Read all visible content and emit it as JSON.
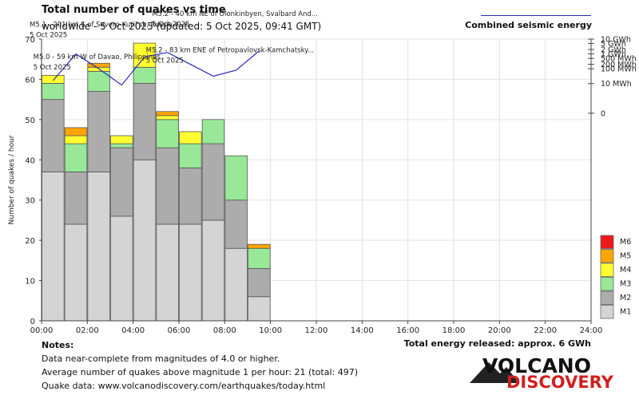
{
  "header": {
    "title": "Total number of quakes vs time",
    "subtitle": "worldwide -  5 Oct 2025 (updated: 5 Oct 2025, 09:41 GMT)",
    "energy_legend": "Combined seismic energy"
  },
  "colors": {
    "M1": "#d4d4d4",
    "M2": "#acacac",
    "M3": "#98e898",
    "M4": "#ffff30",
    "M5": "#ffa500",
    "M6": "#ee1a1a",
    "energy_line": "#2a2ab8"
  },
  "chart_data": {
    "type": "bar",
    "stacked": true,
    "title": "Total number of quakes vs time",
    "xlabel": "",
    "ylabel": "Number of quakes / hour",
    "ylim": [
      0,
      70
    ],
    "yticks": [
      0,
      10,
      20,
      30,
      40,
      50,
      60,
      70
    ],
    "xlim": [
      0,
      24
    ],
    "xtick_labels": [
      "00:00",
      "02:00",
      "04:00",
      "06:00",
      "08:00",
      "10:00",
      "12:00",
      "14:00",
      "16:00",
      "18:00",
      "20:00",
      "22:00",
      "24:00"
    ],
    "hours": [
      0,
      1,
      2,
      3,
      4,
      5,
      6,
      7,
      8,
      9
    ],
    "series": [
      {
        "name": "M1",
        "values": [
          37,
          24,
          37,
          26,
          40,
          24,
          24,
          25,
          18,
          6
        ]
      },
      {
        "name": "M2",
        "values": [
          18,
          13,
          20,
          17,
          19,
          19,
          14,
          19,
          12,
          7
        ]
      },
      {
        "name": "M3",
        "values": [
          4,
          7,
          5,
          1,
          4,
          7,
          6,
          6,
          11,
          5
        ]
      },
      {
        "name": "M4",
        "values": [
          2,
          2,
          1,
          2,
          6,
          1,
          3,
          0,
          0,
          0
        ]
      },
      {
        "name": "M5",
        "values": [
          0,
          2,
          1,
          0,
          0,
          1,
          0,
          0,
          0,
          1
        ]
      },
      {
        "name": "M6",
        "values": [
          0,
          0,
          0,
          0,
          0,
          0,
          0,
          0,
          0,
          0
        ]
      }
    ],
    "legend": [
      "M6",
      "M5",
      "M4",
      "M3",
      "M2",
      "M1"
    ],
    "energy_axis": {
      "label": "Combined seismic energy",
      "ticks": [
        {
          "label": "10 GWh",
          "log10_wh": 10
        },
        {
          "label": "5 GWh",
          "log10_wh": 9.7
        },
        {
          "label": "2 GWh",
          "log10_wh": 9.3
        },
        {
          "label": "1 GWh",
          "log10_wh": 9
        },
        {
          "label": "500 MWh",
          "log10_wh": 8.7
        },
        {
          "label": "200 MWh",
          "log10_wh": 8.3
        },
        {
          "label": "100 MWh",
          "log10_wh": 8
        },
        {
          "label": "10 MWh",
          "log10_wh": 7
        },
        {
          "label": "0",
          "log10_wh": 5
        }
      ],
      "range_log10_wh": [
        -9,
        10
      ]
    },
    "energy_series": {
      "name": "Combined seismic energy",
      "hours": [
        0.5,
        1.5,
        2.5,
        3.5,
        4.5,
        5.5,
        6.5,
        7.5,
        8.5,
        9.5
      ],
      "log10_wh": [
        7.2,
        9.0,
        8.0,
        6.9,
        8.8,
        9.1,
        8.3,
        7.5,
        7.9,
        9.2
      ]
    },
    "annotations": [
      {
        "text": "M5.1 - 201 km S of Severo-Kuril'sk, Russia",
        "date": "5 Oct 2025",
        "hour": 1.5
      },
      {
        "text": "M5.0 - 59 km W of Davao, Philippines",
        "date": "5 Oct 2025",
        "hour": 2.5
      },
      {
        "text": "M5.2 - 83 km ENE of Petropavlovsk-Kamchatsky...",
        "date": "5 Oct 2025",
        "hour": 5.5
      },
      {
        "text": "M5.2 - 40 km NE of Olonkinbyen, Svalbard And...",
        "date": "5 Oct 2025",
        "hour": 9.5
      }
    ]
  },
  "notes": {
    "header": "Notes:",
    "line1": "Data near-complete from magnitudes of 4.0 or higher.",
    "line2": "Average number of quakes above magnitude 1 per hour: 21 (total: 497)",
    "line3": "Quake data: www.volcanodiscovery.com/earthquakes/today.html"
  },
  "total_energy": "Total energy released: approx. 6 GWh",
  "logo": {
    "line1": "VOLCANO",
    "line2": "DISCOVERY"
  }
}
